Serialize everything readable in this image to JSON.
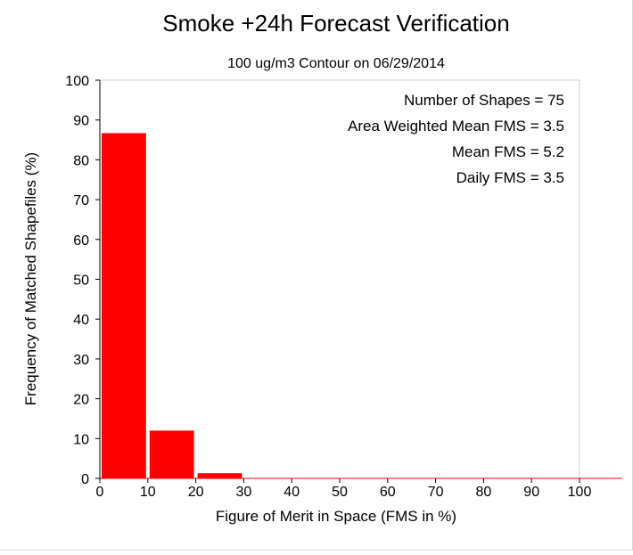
{
  "chart_data": {
    "type": "bar",
    "title": "Smoke +24h Forecast Verification",
    "subtitle": "100 ug/m3 Contour on 06/29/2014",
    "xlabel": "Figure of Merit in Space (FMS in %)",
    "ylabel": "Frequency of Matched Shapefiles (%)",
    "xlim": [
      0,
      100
    ],
    "ylim": [
      0,
      100
    ],
    "xticks": [
      "0",
      "10",
      "20",
      "30",
      "40",
      "50",
      "60",
      "70",
      "80",
      "90",
      "100"
    ],
    "yticks": [
      "0",
      "10",
      "20",
      "30",
      "40",
      "50",
      "60",
      "70",
      "80",
      "90",
      "100"
    ],
    "bins": [
      {
        "start": 0,
        "end": 10,
        "value": 86.7
      },
      {
        "start": 10,
        "end": 20,
        "value": 12.0
      },
      {
        "start": 20,
        "end": 30,
        "value": 1.3
      },
      {
        "start": 30,
        "end": 40,
        "value": 0
      },
      {
        "start": 40,
        "end": 50,
        "value": 0
      },
      {
        "start": 50,
        "end": 60,
        "value": 0
      },
      {
        "start": 60,
        "end": 70,
        "value": 0
      },
      {
        "start": 70,
        "end": 80,
        "value": 0
      },
      {
        "start": 80,
        "end": 90,
        "value": 0
      },
      {
        "start": 90,
        "end": 100,
        "value": 0
      }
    ],
    "bar_color": "#ff0000",
    "annotations": [
      "Number of Shapes = 75",
      "Area Weighted Mean FMS = 3.5",
      "Mean FMS = 5.2",
      "Daily FMS = 3.5"
    ],
    "grid": false,
    "legend": "none"
  }
}
